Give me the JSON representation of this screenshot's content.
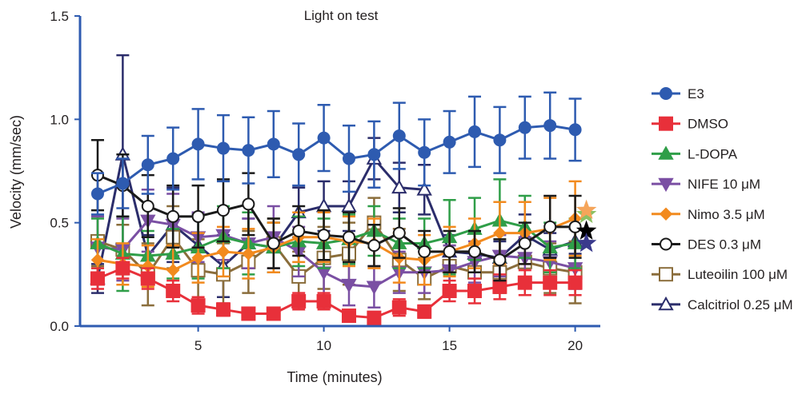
{
  "chart_data": {
    "type": "line",
    "title": "Light on test",
    "xlabel": "Time (minutes)",
    "ylabel": "Velocity (mm/sec)",
    "xlim": [
      0.3,
      21
    ],
    "ylim": [
      0,
      1.5
    ],
    "xticks": [
      5,
      10,
      15,
      20
    ],
    "yticks": [
      0.0,
      0.5,
      1.0,
      1.5
    ],
    "xtick_labels": [
      "5",
      "10",
      "15",
      "20"
    ],
    "ytick_labels": [
      "0.0",
      "0.5",
      "1.0",
      "1.5"
    ],
    "grid": false,
    "legend_position": "right",
    "x": [
      1,
      2,
      3,
      4,
      5,
      6,
      7,
      8,
      9,
      10,
      11,
      12,
      13,
      14,
      15,
      16,
      17,
      18,
      19,
      20
    ],
    "series": [
      {
        "name": "Calcitriol 0.25 μM",
        "color": "#2b2d6b",
        "marker": "triangle-up-open",
        "values": [
          0.23,
          0.83,
          0.34,
          0.49,
          0.39,
          0.29,
          0.4,
          0.38,
          0.55,
          0.58,
          0.58,
          0.81,
          0.67,
          0.66,
          0.36,
          0.35,
          0.33,
          0.44,
          0.37,
          0.41
        ],
        "errors": [
          0.07,
          0.48,
          0.1,
          0.18,
          0.15,
          0.15,
          0.12,
          0.12,
          0.12,
          0.12,
          0.12,
          0.1,
          0.12,
          0.12,
          0.08,
          0.1,
          0.08,
          0.1,
          0.08,
          0.06
        ]
      },
      {
        "name": "Luteoilin 100 μM",
        "color": "#8a6d3b",
        "marker": "square-open",
        "values": [
          0.41,
          0.37,
          0.25,
          0.43,
          0.27,
          0.25,
          0.31,
          0.4,
          0.24,
          0.33,
          0.35,
          0.5,
          0.32,
          0.23,
          0.29,
          0.26,
          0.26,
          0.31,
          0.28,
          0.26
        ],
        "errors": [
          0.12,
          0.12,
          0.15,
          0.15,
          0.15,
          0.15,
          0.15,
          0.12,
          0.12,
          0.15,
          0.15,
          0.12,
          0.15,
          0.1,
          0.1,
          0.1,
          0.1,
          0.12,
          0.12,
          0.15
        ]
      },
      {
        "name": "NIFE 10 μM",
        "color": "#7a4fa3",
        "marker": "triangle-down",
        "values": [
          0.38,
          0.37,
          0.51,
          0.49,
          0.43,
          0.44,
          0.4,
          0.43,
          0.36,
          0.26,
          0.2,
          0.19,
          0.26,
          0.26,
          0.27,
          0.31,
          0.34,
          0.33,
          0.31,
          0.28
        ],
        "errors": [
          0.15,
          0.15,
          0.15,
          0.15,
          0.12,
          0.12,
          0.12,
          0.15,
          0.12,
          0.12,
          0.1,
          0.1,
          0.1,
          0.1,
          0.12,
          0.1,
          0.1,
          0.1,
          0.1,
          0.1
        ]
      },
      {
        "name": "L-DOPA",
        "color": "#2f9e48",
        "marker": "triangle-up",
        "values": [
          0.4,
          0.35,
          0.34,
          0.35,
          0.38,
          0.43,
          0.4,
          0.38,
          0.41,
          0.4,
          0.42,
          0.46,
          0.4,
          0.4,
          0.43,
          0.47,
          0.51,
          0.48,
          0.38,
          0.4
        ],
        "errors": [
          0.12,
          0.18,
          0.12,
          0.12,
          0.15,
          0.15,
          0.15,
          0.12,
          0.12,
          0.12,
          0.12,
          0.12,
          0.12,
          0.12,
          0.18,
          0.15,
          0.2,
          0.15,
          0.12,
          0.12
        ]
      },
      {
        "name": "Nimo 3.5 μM",
        "color": "#f28a1e",
        "marker": "diamond",
        "values": [
          0.32,
          0.3,
          0.29,
          0.27,
          0.33,
          0.36,
          0.35,
          0.38,
          0.43,
          0.43,
          0.41,
          0.4,
          0.33,
          0.32,
          0.36,
          0.4,
          0.45,
          0.45,
          0.47,
          0.52
        ],
        "errors": [
          0.1,
          0.1,
          0.1,
          0.12,
          0.12,
          0.12,
          0.12,
          0.12,
          0.12,
          0.12,
          0.12,
          0.12,
          0.12,
          0.12,
          0.12,
          0.12,
          0.15,
          0.15,
          0.15,
          0.18
        ]
      },
      {
        "name": "DMSO",
        "color": "#e8303a",
        "marker": "square",
        "values": [
          0.23,
          0.28,
          0.23,
          0.17,
          0.1,
          0.08,
          0.06,
          0.06,
          0.12,
          0.12,
          0.05,
          0.04,
          0.09,
          0.07,
          0.17,
          0.17,
          0.19,
          0.21,
          0.21,
          0.21
        ],
        "errors": [
          0.05,
          0.05,
          0.05,
          0.05,
          0.04,
          0.03,
          0.02,
          0.02,
          0.04,
          0.04,
          0.02,
          0.02,
          0.04,
          0.03,
          0.05,
          0.06,
          0.06,
          0.06,
          0.06,
          0.06
        ]
      },
      {
        "name": "DES 0.3 μM",
        "color": "#1a1a1a",
        "marker": "circle-open",
        "values": [
          0.73,
          0.68,
          0.58,
          0.53,
          0.53,
          0.56,
          0.59,
          0.4,
          0.46,
          0.44,
          0.43,
          0.39,
          0.45,
          0.36,
          0.36,
          0.36,
          0.32,
          0.4,
          0.48,
          0.48
        ],
        "errors": [
          0.17,
          0.15,
          0.15,
          0.15,
          0.15,
          0.15,
          0.15,
          0.12,
          0.12,
          0.12,
          0.12,
          0.1,
          0.12,
          0.1,
          0.1,
          0.1,
          0.1,
          0.1,
          0.15,
          0.15
        ]
      },
      {
        "name": "E3",
        "color": "#2e5bb0",
        "marker": "circle",
        "values": [
          0.64,
          0.69,
          0.78,
          0.81,
          0.88,
          0.86,
          0.85,
          0.88,
          0.83,
          0.91,
          0.81,
          0.83,
          0.92,
          0.84,
          0.89,
          0.94,
          0.9,
          0.96,
          0.97,
          0.95
        ],
        "errors": [
          0.1,
          0.12,
          0.14,
          0.15,
          0.17,
          0.16,
          0.16,
          0.16,
          0.15,
          0.16,
          0.16,
          0.16,
          0.16,
          0.16,
          0.15,
          0.17,
          0.16,
          0.15,
          0.16,
          0.15
        ]
      }
    ],
    "legend_order": [
      "E3",
      "DMSO",
      "L-DOPA",
      "NIFE 10 μM",
      "Nimo 3.5 μM",
      "DES 0.3 μM",
      "Luteoilin 100 μM",
      "Calcitriol 0.25 μM"
    ],
    "significance_stars": [
      {
        "series": "L-DOPA",
        "color": "#8cc063"
      },
      {
        "series": "Nimo 3.5 μM",
        "color": "#f5a55a"
      },
      {
        "series": "DES 0.3 μM",
        "color": "#000000"
      },
      {
        "series": "Calcitriol 0.25 μM",
        "color": "#3a3a8c"
      }
    ]
  },
  "colors": {
    "axis": "#2e5bb0",
    "text": "#231f20"
  }
}
